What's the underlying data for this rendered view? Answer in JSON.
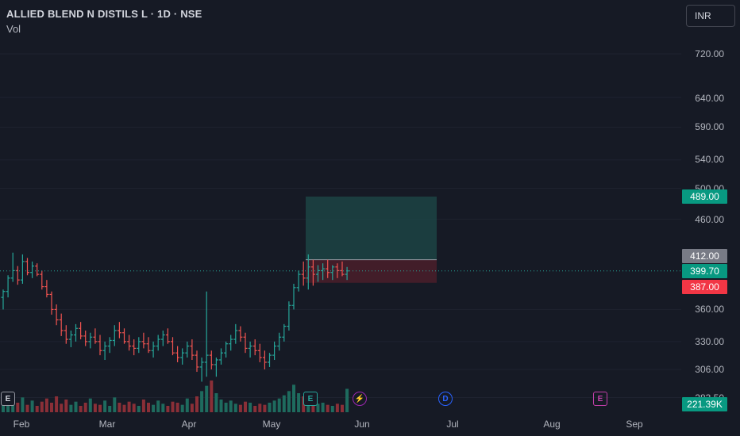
{
  "header": {
    "symbol_line": "ALLIED BLEND N DISTILS L · 1D · NSE",
    "volume_label": "Vol",
    "currency": "INR"
  },
  "y_axis": {
    "ticks": [
      "720.00",
      "640.00",
      "590.00",
      "540.00",
      "500.00",
      "460.00",
      "360.00",
      "330.00",
      "306.00",
      "283.50"
    ]
  },
  "price_badges": {
    "target": "489.00",
    "entry": "412.00",
    "last": "399.70",
    "stop": "387.00",
    "volume": "221.39K"
  },
  "x_axis": {
    "labels": [
      "Feb",
      "Mar",
      "Apr",
      "May",
      "Jun",
      "Jul",
      "Aug",
      "Sep"
    ]
  },
  "events": [
    {
      "type": "earnings",
      "glyph": "E"
    },
    {
      "type": "earnings",
      "glyph": "E"
    },
    {
      "type": "split",
      "glyph": "⚡"
    },
    {
      "type": "dividend",
      "glyph": "D"
    },
    {
      "type": "earnings",
      "glyph": "E"
    }
  ],
  "colors": {
    "background": "#161a25",
    "up": "#26a69a",
    "down": "#ef5350",
    "target_zone": "#1e4a48",
    "stop_zone": "#4a1f2a",
    "last_price": "#26a69a",
    "entry_badge": "#787b86"
  },
  "chart_data": {
    "type": "ohlc",
    "scale": "log",
    "ylim": [
      283.5,
      760
    ],
    "x_range": [
      "2024-01-29",
      "2024-09-20"
    ],
    "series": [
      {
        "values": [
          [
            372,
            380,
            360,
            378
          ],
          [
            378,
            395,
            372,
            392
          ],
          [
            392,
            420,
            388,
            400
          ],
          [
            400,
            405,
            385,
            390
          ],
          [
            390,
            418,
            386,
            410
          ],
          [
            410,
            414,
            395,
            398
          ],
          [
            398,
            410,
            392,
            405
          ],
          [
            405,
            408,
            394,
            396
          ],
          [
            396,
            400,
            380,
            383
          ],
          [
            383,
            390,
            372,
            375
          ],
          [
            375,
            378,
            355,
            360
          ],
          [
            360,
            365,
            345,
            350
          ],
          [
            350,
            356,
            335,
            340
          ],
          [
            340,
            345,
            328,
            332
          ],
          [
            332,
            340,
            325,
            336
          ],
          [
            336,
            346,
            330,
            342
          ],
          [
            342,
            348,
            332,
            335
          ],
          [
            335,
            340,
            326,
            330
          ],
          [
            330,
            338,
            324,
            334
          ],
          [
            334,
            342,
            328,
            330
          ],
          [
            330,
            336,
            318,
            322
          ],
          [
            322,
            330,
            314,
            326
          ],
          [
            326,
            334,
            320,
            331
          ],
          [
            331,
            345,
            326,
            340
          ],
          [
            340,
            348,
            333,
            338
          ],
          [
            338,
            342,
            328,
            330
          ],
          [
            330,
            336,
            322,
            326
          ],
          [
            326,
            332,
            318,
            324
          ],
          [
            324,
            334,
            320,
            330
          ],
          [
            330,
            338,
            324,
            328
          ],
          [
            328,
            334,
            320,
            322
          ],
          [
            322,
            330,
            316,
            326
          ],
          [
            326,
            336,
            322,
            332
          ],
          [
            332,
            340,
            326,
            336
          ],
          [
            336,
            342,
            328,
            330
          ],
          [
            330,
            334,
            318,
            320
          ],
          [
            320,
            326,
            312,
            316
          ],
          [
            316,
            324,
            310,
            320
          ],
          [
            320,
            330,
            316,
            326
          ],
          [
            326,
            332,
            314,
            318
          ],
          [
            318,
            322,
            304,
            308
          ],
          [
            308,
            316,
            296,
            312
          ],
          [
            312,
            378,
            300,
            318
          ],
          [
            318,
            322,
            306,
            310
          ],
          [
            310,
            316,
            300,
            314
          ],
          [
            314,
            324,
            310,
            320
          ],
          [
            320,
            330,
            316,
            328
          ],
          [
            328,
            336,
            322,
            332
          ],
          [
            332,
            346,
            328,
            340
          ],
          [
            340,
            344,
            330,
            334
          ],
          [
            334,
            338,
            320,
            324
          ],
          [
            324,
            330,
            316,
            326
          ],
          [
            326,
            332,
            318,
            322
          ],
          [
            322,
            328,
            312,
            316
          ],
          [
            316,
            322,
            306,
            312
          ],
          [
            312,
            320,
            308,
            318
          ],
          [
            318,
            330,
            314,
            326
          ],
          [
            326,
            338,
            322,
            334
          ],
          [
            334,
            346,
            330,
            344
          ],
          [
            344,
            368,
            340,
            364
          ],
          [
            364,
            386,
            360,
            382
          ],
          [
            382,
            400,
            378,
            396
          ],
          [
            396,
            410,
            384,
            392
          ],
          [
            392,
            418,
            380,
            404
          ],
          [
            404,
            412,
            384,
            396
          ],
          [
            396,
            406,
            388,
            400
          ],
          [
            400,
            408,
            390,
            402
          ],
          [
            402,
            412,
            392,
            398
          ],
          [
            398,
            406,
            390,
            404
          ],
          [
            404,
            408,
            392,
            400
          ],
          [
            400,
            410,
            394,
            396
          ],
          [
            396,
            404,
            390,
            399.7
          ]
        ]
      },
      {
        "name": "Vol",
        "values": [
          120,
          80,
          160,
          90,
          140,
          70,
          110,
          60,
          100,
          130,
          90,
          150,
          80,
          120,
          70,
          100,
          60,
          90,
          130,
          80,
          70,
          110,
          60,
          140,
          90,
          70,
          100,
          80,
          60,
          120,
          90,
          70,
          110,
          80,
          60,
          100,
          90,
          70,
          130,
          80,
          150,
          200,
          250,
          300,
          180,
          120,
          90,
          110,
          80,
          70,
          100,
          90,
          60,
          80,
          70,
          90,
          110,
          130,
          160,
          200,
          260,
          180,
          150,
          120,
          100,
          80,
          90,
          70,
          60,
          80,
          70,
          221.39
        ]
      }
    ],
    "position": {
      "entry": 412,
      "target": 489,
      "stop": 387
    }
  }
}
